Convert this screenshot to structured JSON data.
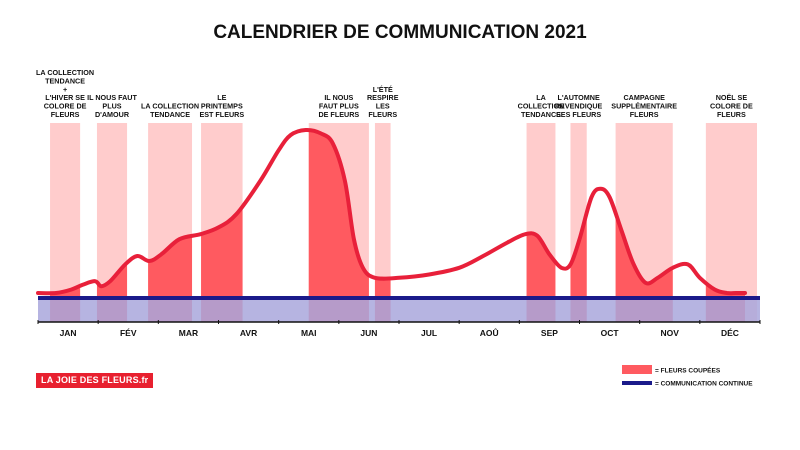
{
  "logo": "LA JOIE DES FLEURS.fr",
  "chart_data": {
    "type": "area",
    "title": "CALENDRIER DE COMMUNICATION 2021",
    "months": [
      "JAN",
      "FÉV",
      "MAR",
      "AVR",
      "MAI",
      "JUN",
      "JUL",
      "AOÛ",
      "SEP",
      "OCT",
      "NOV",
      "DÉC"
    ],
    "colors": {
      "band_light": "#ffcccc",
      "band_dark": "#ff5a60",
      "curve": "#e8203a",
      "continuous": "#1a1a8a",
      "continuous_fill": "#a9a7dc"
    },
    "series": [
      {
        "name": "= FLEURS COUPÉES",
        "x": [
          0.0,
          0.3,
          0.55,
          0.75,
          0.95,
          1.05,
          1.2,
          1.45,
          1.65,
          1.85,
          2.05,
          2.35,
          2.7,
          3.0,
          3.3,
          3.7,
          4.0,
          4.2,
          4.45,
          4.7,
          4.9,
          5.1,
          5.25,
          5.4,
          5.6,
          6.0,
          6.5,
          7.0,
          7.4,
          7.8,
          8.1,
          8.3,
          8.5,
          8.7,
          8.85,
          9.0,
          9.2,
          9.35,
          9.5,
          9.7,
          9.9,
          10.1,
          10.3,
          10.55,
          10.8,
          11.0,
          11.25,
          11.45,
          11.6,
          11.75
        ],
        "y": [
          3,
          3,
          5,
          8,
          10,
          7,
          10,
          20,
          25,
          22,
          26,
          35,
          38,
          42,
          50,
          70,
          88,
          97,
          100,
          98,
          92,
          70,
          35,
          18,
          12,
          12,
          14,
          18,
          25,
          33,
          38,
          37,
          26,
          18,
          20,
          35,
          60,
          65,
          60,
          40,
          20,
          9,
          12,
          18,
          20,
          12,
          5,
          3,
          3,
          3
        ]
      },
      {
        "name": "= COMMUNICATION CONTINUE",
        "value": 0
      }
    ],
    "highlight_periods": [
      {
        "label": "LA COLLECTION TENDANCE + L'HIVER SE COLORE DE FLEURS",
        "lines": [
          "LA COLLECTION",
          "TENDANCE",
          "+",
          "L'HIVER SE",
          "COLORE DE",
          "FLEURS"
        ],
        "start": 0.2,
        "end": 0.7
      },
      {
        "label": "IL NOUS FAUT PLUS D'AMOUR",
        "lines": [
          "IL NOUS FAUT",
          "PLUS",
          "D'AMOUR"
        ],
        "start": 0.98,
        "end": 1.48
      },
      {
        "label": "LA COLLECTION TENDANCE",
        "lines": [
          "LA COLLECTION",
          "TENDANCE"
        ],
        "start": 1.83,
        "end": 2.56
      },
      {
        "label": "LE PRINTEMPS EST FLEURS",
        "lines": [
          "LE",
          "PRINTEMPS",
          "EST FLEURS"
        ],
        "start": 2.71,
        "end": 3.4
      },
      {
        "label": "IL NOUS FAUT PLUS DE FLEURS",
        "lines": [
          "IL NOUS",
          "FAUT PLUS",
          "DE FLEURS"
        ],
        "start": 4.5,
        "end": 5.5
      },
      {
        "label": "L'ÉTÉ RESPIRE LES FLEURS",
        "lines": [
          "L'ÉTÉ",
          "RESPIRE",
          "LES",
          "FLEURS"
        ],
        "start": 5.6,
        "end": 5.86
      },
      {
        "label": "LA COLLECTION TENDANCE",
        "lines": [
          "LA",
          "COLLECTION",
          "TENDANCE"
        ],
        "start": 8.12,
        "end": 8.6
      },
      {
        "label": "L'AUTOMNE REVENDIQUE SES FLEURS",
        "lines": [
          "L'AUTOMNE",
          "REVENDIQUE",
          "SES FLEURS"
        ],
        "start": 8.85,
        "end": 9.12
      },
      {
        "label": "CAMPAGNE SUPPLÉMENTAIRE FLEURS",
        "lines": [
          "CAMPAGNE",
          "SUPPLÉMENTAIRE",
          "FLEURS"
        ],
        "start": 9.6,
        "end": 10.55
      },
      {
        "label": "NOËL SE COLORE DE FLEURS",
        "lines": [
          "NOËL SE",
          "COLORE DE",
          "FLEURS"
        ],
        "start": 11.1,
        "end": 11.95
      }
    ],
    "legend": [
      "= FLEURS COUPÉES",
      "= COMMUNICATION CONTINUE"
    ],
    "legend_position": "bottom-right",
    "grid": false
  }
}
